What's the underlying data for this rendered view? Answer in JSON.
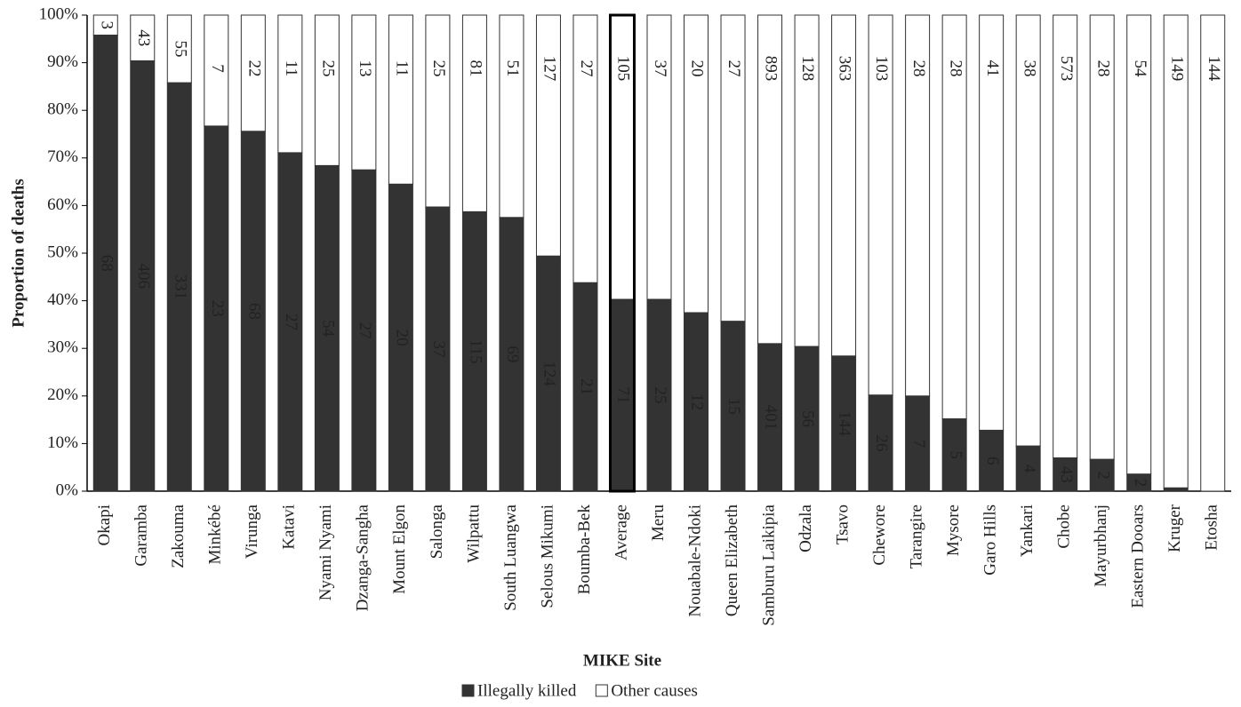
{
  "chart_data": {
    "type": "stacked_percent_bar",
    "x_label": "MIKE Site",
    "y_label": "Proportion of deaths",
    "categories": [
      "Okapi",
      "Garamba",
      "Zakouma",
      "Minkébé",
      "Virunga",
      "Katavi",
      "Nyami Nyami",
      "Dzanga-Sangha",
      "Mount Elgon",
      "Salonga",
      "Wilpattu",
      "South Luangwa",
      "Selous Mikumi",
      "Boumba-Bek",
      "Average",
      "Meru",
      "Nouabale-Ndoki",
      "Queen Elizabeth",
      "Samburu Laikipia",
      "Odzala",
      "Tsavo",
      "Chewore",
      "Tarangire",
      "Mysore",
      "Garo Hills",
      "Yankari",
      "Chobe",
      "Mayurbhanj",
      "Eastern Dooars",
      "Kruger",
      "Etosha"
    ],
    "highlight_category": "Average",
    "series": [
      {
        "name": "Illegally killed",
        "color": "#333333",
        "values": [
          95.8,
          90.4,
          85.8,
          76.7,
          75.6,
          71.1,
          68.4,
          67.5,
          64.5,
          59.7,
          58.7,
          57.5,
          49.4,
          43.8,
          40.3,
          40.3,
          37.5,
          35.7,
          31,
          30.4,
          28.4,
          20.2,
          20,
          15.2,
          12.8,
          9.5,
          7,
          6.7,
          3.6,
          0.7,
          0
        ],
        "counts": [
          68,
          406,
          331,
          23,
          68,
          27,
          54,
          27,
          20,
          37,
          115,
          69,
          124,
          21,
          71,
          25,
          12,
          15,
          401,
          56,
          144,
          26,
          7,
          5,
          6,
          4,
          43,
          2,
          2,
          null,
          null
        ]
      },
      {
        "name": "Other causes",
        "color": "#ffffff",
        "values": [
          4.2,
          9.6,
          14.2,
          23.3,
          24.4,
          28.9,
          31.6,
          32.5,
          35.5,
          40.3,
          41.3,
          42.5,
          50.6,
          56.2,
          59.7,
          59.7,
          62.5,
          64.3,
          69,
          69.6,
          71.6,
          79.8,
          80,
          84.8,
          87.2,
          90.5,
          93,
          93.3,
          96.4,
          99.3,
          100
        ],
        "counts": [
          3,
          43,
          55,
          7,
          22,
          11,
          25,
          13,
          11,
          25,
          81,
          51,
          127,
          27,
          105,
          37,
          20,
          27,
          893,
          128,
          363,
          103,
          28,
          28,
          41,
          38,
          573,
          28,
          54,
          149,
          144
        ]
      }
    ],
    "ylim": [
      0,
      100
    ],
    "yticks": [
      {
        "value": 0,
        "label": "0%"
      },
      {
        "value": 10,
        "label": "10%"
      },
      {
        "value": 20,
        "label": "20%"
      },
      {
        "value": 30,
        "label": "30%"
      },
      {
        "value": 40,
        "label": "40%"
      },
      {
        "value": 50,
        "label": "50%"
      },
      {
        "value": 60,
        "label": "60%"
      },
      {
        "value": 70,
        "label": "70%"
      },
      {
        "value": 80,
        "label": "80%"
      },
      {
        "value": 90,
        "label": "90%"
      },
      {
        "value": 100,
        "label": "100%"
      }
    ],
    "legend": "bottom"
  }
}
